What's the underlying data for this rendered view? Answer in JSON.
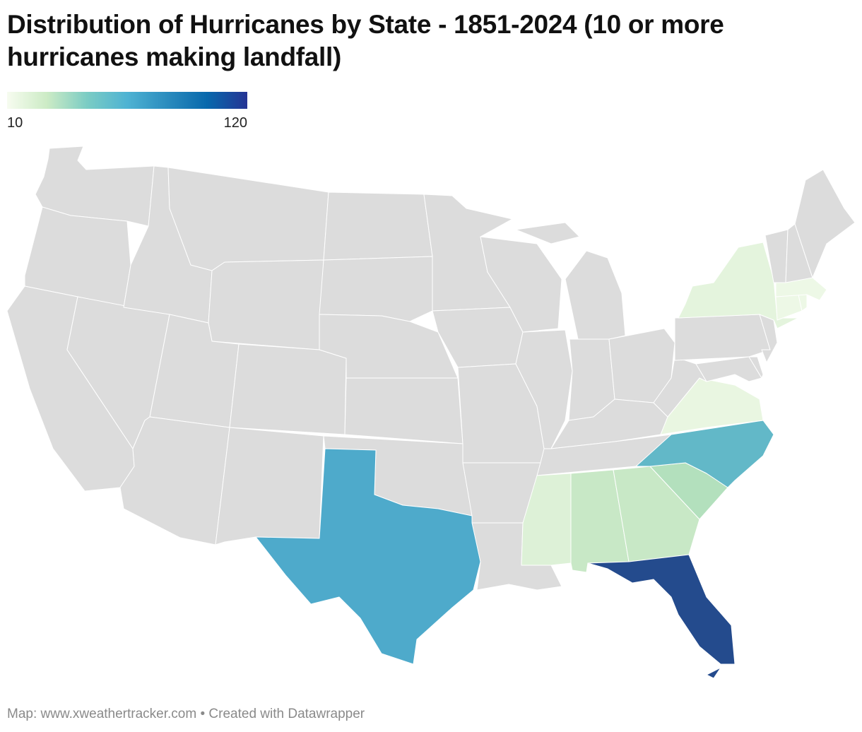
{
  "title": "Distribution of Hurricanes by State - 1851-2024 (10 or more hurricanes making landfall)",
  "legend": {
    "min_label": "10",
    "max_label": "120",
    "gradient": [
      "#f7fcf0",
      "#ccebc5",
      "#7bccc4",
      "#4eb3d3",
      "#2b8cbe",
      "#0868ac",
      "#253494"
    ]
  },
  "footer": {
    "source": "Map: www.xweathertracker.com",
    "separator": "•",
    "credit": "Created with Datawrapper"
  },
  "map_style": {
    "no_data_color": "#dcdcdc",
    "border_color": "#ffffff"
  },
  "states": [
    {
      "id": "WA",
      "name": "Washington",
      "color": "#dcdcdc"
    },
    {
      "id": "OR",
      "name": "Oregon",
      "color": "#dcdcdc"
    },
    {
      "id": "CA",
      "name": "California",
      "color": "#dcdcdc"
    },
    {
      "id": "NV",
      "name": "Nevada",
      "color": "#dcdcdc"
    },
    {
      "id": "ID",
      "name": "Idaho",
      "color": "#dcdcdc"
    },
    {
      "id": "MT",
      "name": "Montana",
      "color": "#dcdcdc"
    },
    {
      "id": "WY",
      "name": "Wyoming",
      "color": "#dcdcdc"
    },
    {
      "id": "UT",
      "name": "Utah",
      "color": "#dcdcdc"
    },
    {
      "id": "AZ",
      "name": "Arizona",
      "color": "#dcdcdc"
    },
    {
      "id": "CO",
      "name": "Colorado",
      "color": "#dcdcdc"
    },
    {
      "id": "NM",
      "name": "New Mexico",
      "color": "#dcdcdc"
    },
    {
      "id": "ND",
      "name": "North Dakota",
      "color": "#dcdcdc"
    },
    {
      "id": "SD",
      "name": "South Dakota",
      "color": "#dcdcdc"
    },
    {
      "id": "NE",
      "name": "Nebraska",
      "color": "#dcdcdc"
    },
    {
      "id": "KS",
      "name": "Kansas",
      "color": "#dcdcdc"
    },
    {
      "id": "OK",
      "name": "Oklahoma",
      "color": "#dcdcdc"
    },
    {
      "id": "TX",
      "name": "Texas",
      "color": "#4eaacb"
    },
    {
      "id": "MN",
      "name": "Minnesota",
      "color": "#dcdcdc"
    },
    {
      "id": "IA",
      "name": "Iowa",
      "color": "#dcdcdc"
    },
    {
      "id": "MO",
      "name": "Missouri",
      "color": "#dcdcdc"
    },
    {
      "id": "AR",
      "name": "Arkansas",
      "color": "#dcdcdc"
    },
    {
      "id": "LA",
      "name": "Louisiana",
      "color": "#dcdcdc"
    },
    {
      "id": "WI",
      "name": "Wisconsin",
      "color": "#dcdcdc"
    },
    {
      "id": "IL",
      "name": "Illinois",
      "color": "#dcdcdc"
    },
    {
      "id": "MI",
      "name": "Michigan",
      "color": "#dcdcdc"
    },
    {
      "id": "IN",
      "name": "Indiana",
      "color": "#dcdcdc"
    },
    {
      "id": "OH",
      "name": "Ohio",
      "color": "#dcdcdc"
    },
    {
      "id": "KY",
      "name": "Kentucky",
      "color": "#dcdcdc"
    },
    {
      "id": "TN",
      "name": "Tennessee",
      "color": "#dcdcdc"
    },
    {
      "id": "MS",
      "name": "Mississippi",
      "color": "#ddf1d7"
    },
    {
      "id": "AL",
      "name": "Alabama",
      "color": "#c8e8c6"
    },
    {
      "id": "GA",
      "name": "Georgia",
      "color": "#c8e8c6"
    },
    {
      "id": "FL",
      "name": "Florida",
      "color": "#244b8d"
    },
    {
      "id": "SC",
      "name": "South Carolina",
      "color": "#b3e0bd"
    },
    {
      "id": "NC",
      "name": "North Carolina",
      "color": "#62b8c8"
    },
    {
      "id": "VA",
      "name": "Virginia",
      "color": "#e9f6e1"
    },
    {
      "id": "WV",
      "name": "West Virginia",
      "color": "#dcdcdc"
    },
    {
      "id": "PA",
      "name": "Pennsylvania",
      "color": "#dcdcdc"
    },
    {
      "id": "MD",
      "name": "Maryland",
      "color": "#dcdcdc"
    },
    {
      "id": "DE",
      "name": "Delaware",
      "color": "#dcdcdc"
    },
    {
      "id": "NJ",
      "name": "New Jersey",
      "color": "#dcdcdc"
    },
    {
      "id": "NY",
      "name": "New York",
      "color": "#e4f4dd"
    },
    {
      "id": "CT",
      "name": "Connecticut",
      "color": "#edf8e6"
    },
    {
      "id": "RI",
      "name": "Rhode Island",
      "color": "#edf8e6"
    },
    {
      "id": "MA",
      "name": "Massachusetts",
      "color": "#edf8e6"
    },
    {
      "id": "VT",
      "name": "Vermont",
      "color": "#dcdcdc"
    },
    {
      "id": "NH",
      "name": "New Hampshire",
      "color": "#dcdcdc"
    },
    {
      "id": "ME",
      "name": "Maine",
      "color": "#dcdcdc"
    }
  ]
}
